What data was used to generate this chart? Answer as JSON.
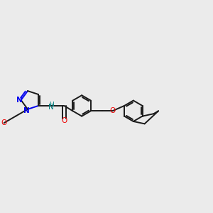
{
  "background_color": "#ebebeb",
  "bond_color": "#1a1a1a",
  "nitrogen_color": "#0000ee",
  "oxygen_color": "#ee0000",
  "nh_color": "#008080",
  "bond_width": 1.4,
  "figsize": [
    3.0,
    3.0
  ],
  "dpi": 100,
  "xlim": [
    -2.5,
    10.5
  ],
  "ylim": [
    -3.5,
    4.5
  ]
}
